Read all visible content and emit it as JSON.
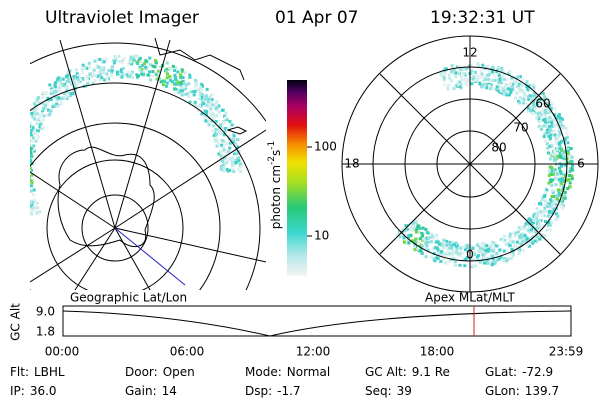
{
  "header": {
    "title": "Ultraviolet Imager",
    "date": "01 Apr 07",
    "time": "19:32:31 UT"
  },
  "colorbar": {
    "label": "photon cm",
    "exp1": "-2",
    "mid": "s",
    "exp2": "-1",
    "ticks": [
      "100",
      "10"
    ]
  },
  "left_panel": {
    "label": "Geographic Lat/Lon"
  },
  "right_panel": {
    "label": "Apex MLat/MLT",
    "mlt_labels": {
      "top": "12",
      "left": "18",
      "right": "6",
      "bottom": "0"
    },
    "lat_labels": [
      "60",
      "70",
      "80"
    ]
  },
  "altitude_plot": {
    "axis_label": "GC Alt",
    "yticks": [
      "9.0",
      "1.8"
    ],
    "xticks": [
      "00:00",
      "06:00",
      "12:00",
      "18:00",
      "23:59"
    ]
  },
  "footer": {
    "rows": [
      [
        [
          "Flt:",
          "LBHL"
        ],
        [
          "Door:",
          "Open"
        ],
        [
          "Mode:",
          "Normal"
        ],
        [
          "GC Alt:",
          "9.1 Re"
        ],
        [
          "GLat:",
          "-72.9"
        ]
      ],
      [
        [
          "IP:",
          "36.0"
        ],
        [
          "Gain:",
          "14"
        ],
        [
          "Dsp:",
          "-1.7"
        ],
        [
          "Seq:",
          "39"
        ],
        [
          "GLon:",
          "139.7"
        ]
      ]
    ]
  }
}
